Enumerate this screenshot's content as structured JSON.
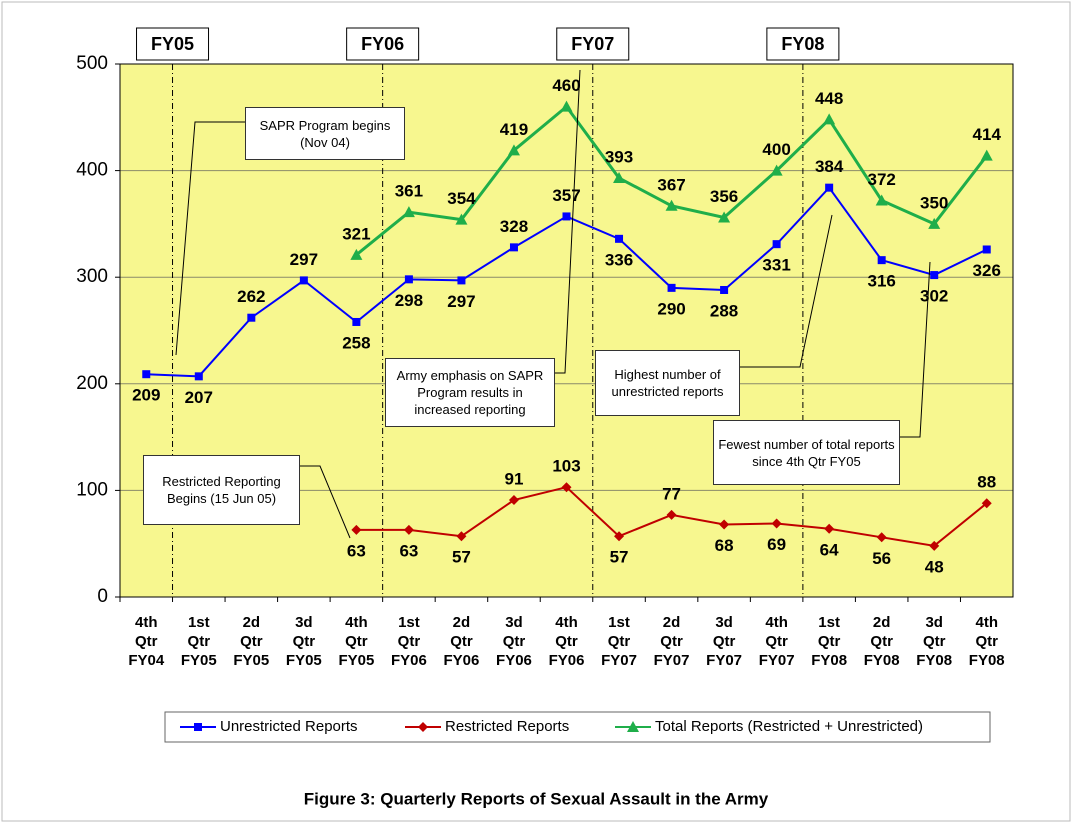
{
  "chart_data": {
    "type": "line",
    "title": "Figure 3: Quarterly Reports of Sexual Assault in the Army",
    "categories": [
      "4th Qtr FY04",
      "1st Qtr FY05",
      "2d Qtr FY05",
      "3d Qtr FY05",
      "4th Qtr FY05",
      "1st Qtr FY06",
      "2d Qtr FY06",
      "3d Qtr FY06",
      "4th Qtr FY06",
      "1st Qtr FY07",
      "2d Qtr FY07",
      "3d Qtr FY07",
      "4th Qtr FY07",
      "1st Qtr FY08",
      "2d Qtr FY08",
      "3d Qtr FY08",
      "4th Qtr FY08"
    ],
    "series": [
      {
        "name": "Unrestricted Reports",
        "color": "#0000ff",
        "marker": "square",
        "values": [
          209,
          207,
          262,
          297,
          258,
          298,
          297,
          328,
          357,
          336,
          290,
          288,
          331,
          384,
          316,
          302,
          326
        ]
      },
      {
        "name": "Restricted Reports",
        "color": "#c00000",
        "marker": "diamond",
        "values": [
          null,
          null,
          null,
          null,
          63,
          63,
          57,
          91,
          103,
          57,
          77,
          68,
          69,
          64,
          56,
          48,
          88
        ]
      },
      {
        "name": "Total Reports (Restricted + Unrestricted)",
        "color": "#1fae4a",
        "marker": "triangle",
        "values": [
          null,
          null,
          null,
          null,
          321,
          361,
          354,
          419,
          460,
          393,
          367,
          356,
          400,
          448,
          372,
          350,
          414
        ]
      }
    ],
    "fiscal_years": [
      "FY05",
      "FY06",
      "FY07",
      "FY08"
    ],
    "annotations": [
      "SAPR Program begins (Nov 04)",
      "Army emphasis on SAPR Program results in increased reporting",
      "Highest number of unrestricted reports",
      "Fewest number of total reports since 4th Qtr FY05",
      "Restricted Reporting Begins (15 Jun 05)"
    ],
    "ylim": [
      0,
      500
    ],
    "yticks": [
      0,
      100,
      200,
      300,
      400,
      500
    ],
    "grid": true
  }
}
